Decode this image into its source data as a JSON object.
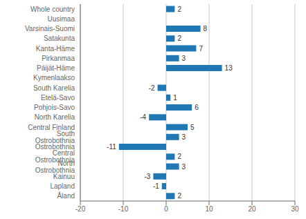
{
  "chart_data": {
    "type": "bar",
    "orientation": "horizontal",
    "categories": [
      "Whole country",
      "Uusimaa",
      "Varsinais-Suomi",
      "Satakunta",
      "Kanta-Häme",
      "Pirkanmaa",
      "Päijät-Häme",
      "Kymenlaakso",
      "South Karelia",
      "Etelä-Savo",
      "Pohjois-Savo",
      "North Karelia",
      "Central Finland",
      "South Ostrobothnia",
      "Ostrobothnia",
      "Central Ostrobothnia",
      "North Ostrobothnia",
      "Kainuu",
      "Lapland",
      "Åland"
    ],
    "values": [
      2,
      0,
      8,
      2,
      7,
      3,
      13,
      0,
      -2,
      1,
      6,
      -4,
      5,
      3,
      -11,
      2,
      3,
      -3,
      -1,
      2
    ],
    "color": "#1f77b4",
    "xlim": [
      -20,
      30
    ],
    "xticks": [
      -20,
      -10,
      0,
      10,
      20,
      30
    ],
    "grid": true,
    "data_labels": true
  }
}
